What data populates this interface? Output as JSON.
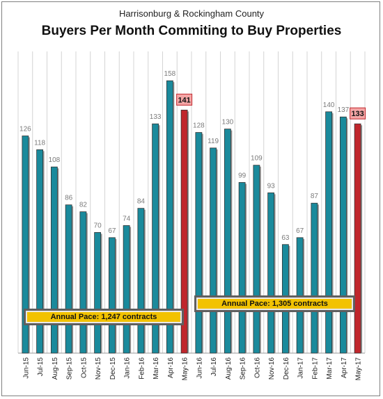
{
  "subtitle": "Harrisonburg & Rockingham County",
  "title": "Buyers Per Month Commiting to Buy Properties",
  "annotations": {
    "pace_first": "Annual Pace: 1,247 contracts",
    "pace_second": "Annual Pace: 1,305 contracts"
  },
  "colors": {
    "bar": "#1a8a9c",
    "highlight_bar": "#c0262c",
    "highlight_label_bg": "#f4a6a6",
    "callout": "#f2c200"
  },
  "chart_data": {
    "type": "bar",
    "title": "Buyers Per Month Commiting to Buy Properties",
    "subtitle": "Harrisonburg & Rockingham County",
    "xlabel": "",
    "ylabel": "",
    "ylim": [
      0,
      175
    ],
    "grid": true,
    "categories": [
      "Jun-15",
      "Jul-15",
      "Aug-15",
      "Sep-15",
      "Oct-15",
      "Nov-15",
      "Dec-15",
      "Jan-16",
      "Feb-16",
      "Mar-16",
      "Apr-16",
      "May-16",
      "Jun-16",
      "Jul-16",
      "Aug-16",
      "Sep-16",
      "Oct-16",
      "Nov-16",
      "Dec-16",
      "Jan-17",
      "Feb-17",
      "Mar-17",
      "Apr-17",
      "May-17"
    ],
    "values": [
      126,
      118,
      108,
      86,
      82,
      70,
      67,
      74,
      84,
      133,
      158,
      141,
      128,
      119,
      130,
      99,
      109,
      93,
      63,
      67,
      87,
      140,
      137,
      133
    ],
    "highlighted": [
      "May-16",
      "May-17"
    ]
  }
}
